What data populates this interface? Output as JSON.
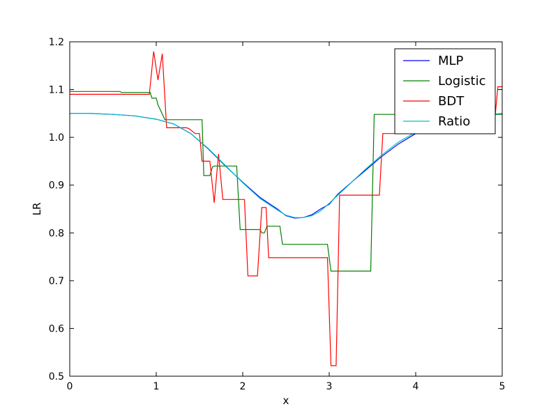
{
  "chart_data": {
    "type": "line",
    "xlabel": "x",
    "ylabel": "LR",
    "xlim": [
      0,
      5
    ],
    "ylim": [
      0.5,
      1.2
    ],
    "xticks": [
      0,
      1,
      2,
      3,
      4,
      5
    ],
    "yticks": [
      0.5,
      0.6,
      0.7,
      0.8,
      0.9,
      1.0,
      1.1,
      1.2
    ],
    "xtick_labels": [
      "0",
      "1",
      "2",
      "3",
      "4",
      "5"
    ],
    "ytick_labels": [
      "0.5",
      "0.6",
      "0.7",
      "0.8",
      "0.9",
      "1.0",
      "1.1",
      "1.2"
    ],
    "legend_position": "top-right",
    "series": [
      {
        "name": "MLP",
        "color": "#0000ff",
        "x": [
          0,
          0.25,
          0.5,
          0.75,
          1.0,
          1.2,
          1.4,
          1.6,
          1.8,
          2.0,
          2.2,
          2.4,
          2.5,
          2.6,
          2.7,
          2.8,
          2.9,
          3.0,
          3.1,
          3.2,
          3.4,
          3.6,
          3.8,
          4.0,
          4.2,
          4.4,
          4.6,
          4.8,
          5.0
        ],
        "y": [
          1.05,
          1.05,
          1.048,
          1.045,
          1.038,
          1.028,
          1.008,
          0.976,
          0.94,
          0.906,
          0.874,
          0.85,
          0.836,
          0.831,
          0.832,
          0.838,
          0.85,
          0.86,
          0.881,
          0.897,
          0.928,
          0.959,
          0.986,
          1.008,
          1.025,
          1.036,
          1.043,
          1.047,
          1.049
        ]
      },
      {
        "name": "Logistic",
        "color": "#008000",
        "x": [
          0,
          0.58,
          0.6,
          0.93,
          0.95,
          1.0,
          1.02,
          1.1,
          1.53,
          1.55,
          1.57,
          1.62,
          1.65,
          1.67,
          1.93,
          1.97,
          2.2,
          2.22,
          2.25,
          2.28,
          2.43,
          2.46,
          2.98,
          3.02,
          3.48,
          3.52,
          5.0
        ],
        "y": [
          1.096,
          1.096,
          1.094,
          1.094,
          1.082,
          1.082,
          1.068,
          1.037,
          1.037,
          0.92,
          0.92,
          0.92,
          0.938,
          0.94,
          0.94,
          0.807,
          0.807,
          0.8,
          0.8,
          0.814,
          0.814,
          0.776,
          0.776,
          0.72,
          0.72,
          1.048,
          1.048
        ]
      },
      {
        "name": "BDT",
        "color": "#ff0000",
        "x": [
          0,
          0.92,
          0.97,
          1.02,
          1.07,
          1.12,
          1.35,
          1.38,
          1.45,
          1.5,
          1.53,
          1.58,
          1.62,
          1.67,
          1.72,
          1.77,
          2.02,
          2.06,
          2.17,
          2.22,
          2.27,
          2.3,
          2.35,
          2.98,
          3.02,
          3.08,
          3.12,
          3.58,
          3.62,
          4.0,
          4.1,
          4.9,
          4.95,
          5.0
        ],
        "y": [
          1.09,
          1.09,
          1.18,
          1.12,
          1.175,
          1.02,
          1.02,
          1.018,
          1.008,
          1.008,
          0.95,
          0.95,
          0.95,
          0.863,
          0.965,
          0.87,
          0.87,
          0.71,
          0.71,
          0.853,
          0.853,
          0.748,
          0.748,
          0.748,
          0.522,
          0.522,
          0.879,
          0.879,
          1.008,
          1.008,
          1.01,
          1.01,
          1.106,
          1.106
        ]
      },
      {
        "name": "Ratio",
        "color": "#00bfbf",
        "x": [
          0,
          0.25,
          0.5,
          0.75,
          1.0,
          1.2,
          1.4,
          1.6,
          1.8,
          2.0,
          2.2,
          2.4,
          2.5,
          2.6,
          2.7,
          2.8,
          2.9,
          3.0,
          3.1,
          3.2,
          3.4,
          3.6,
          3.8,
          4.0,
          4.2,
          4.4,
          4.6,
          4.8,
          5.0
        ],
        "y": [
          1.05,
          1.05,
          1.048,
          1.045,
          1.038,
          1.028,
          1.008,
          0.977,
          0.941,
          0.905,
          0.872,
          0.848,
          0.837,
          0.832,
          0.832,
          0.836,
          0.846,
          0.862,
          0.879,
          0.896,
          0.93,
          0.962,
          0.99,
          1.011,
          1.027,
          1.038,
          1.044,
          1.048,
          1.05
        ]
      }
    ]
  }
}
